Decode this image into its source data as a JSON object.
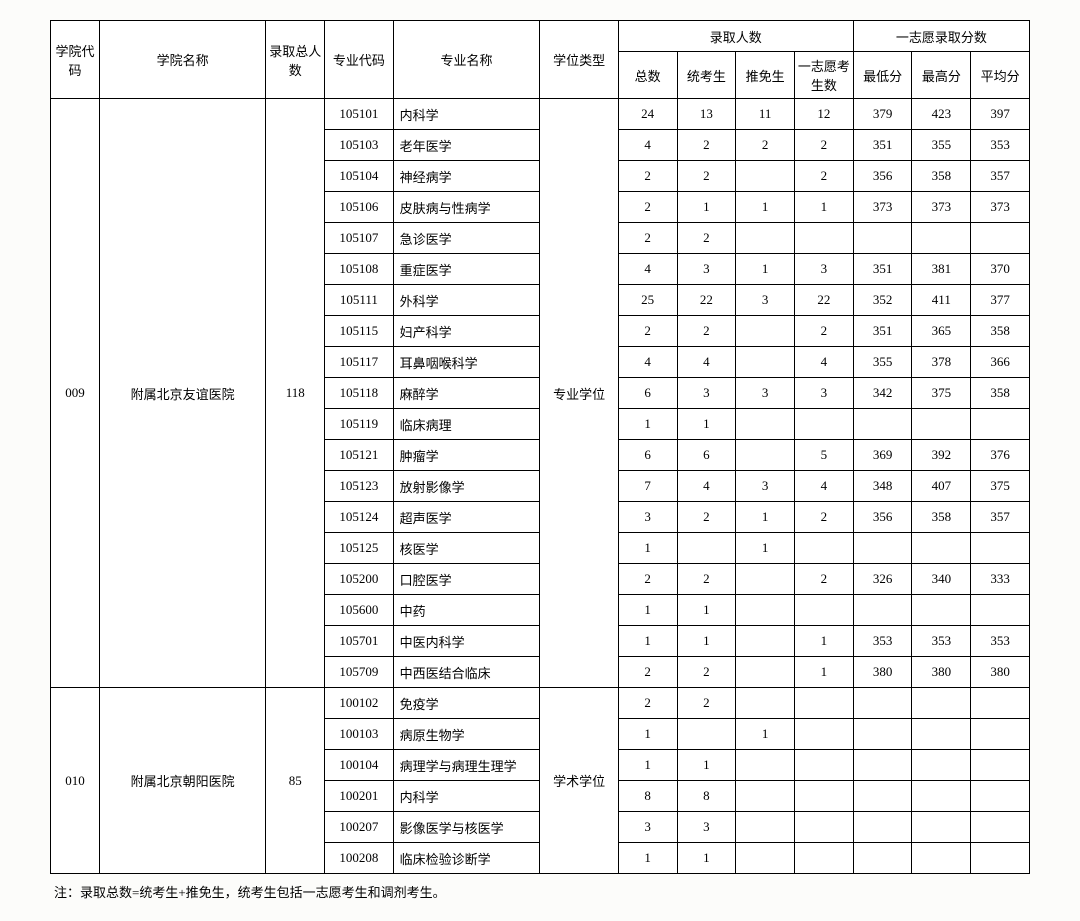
{
  "headers": {
    "college_code": "学院代码",
    "college_name": "学院名称",
    "total_admitted": "录取总人数",
    "major_code": "专业代码",
    "major_name": "专业名称",
    "degree_type": "学位类型",
    "admitted_count": "录取人数",
    "first_choice_score": "一志愿录取分数",
    "total": "总数",
    "exam": "统考生",
    "recommend": "推免生",
    "first_choice": "一志愿考生数",
    "min": "最低分",
    "max": "最高分",
    "avg": "平均分"
  },
  "groups": [
    {
      "college_code": "009",
      "college_name": "附属北京友谊医院",
      "total_admitted": "118",
      "degree_type": "专业学位",
      "rows": [
        {
          "major_code": "105101",
          "major_name": "内科学",
          "total": "24",
          "exam": "13",
          "recommend": "11",
          "first": "12",
          "min": "379",
          "max": "423",
          "avg": "397"
        },
        {
          "major_code": "105103",
          "major_name": "老年医学",
          "total": "4",
          "exam": "2",
          "recommend": "2",
          "first": "2",
          "min": "351",
          "max": "355",
          "avg": "353"
        },
        {
          "major_code": "105104",
          "major_name": "神经病学",
          "total": "2",
          "exam": "2",
          "recommend": "",
          "first": "2",
          "min": "356",
          "max": "358",
          "avg": "357"
        },
        {
          "major_code": "105106",
          "major_name": "皮肤病与性病学",
          "total": "2",
          "exam": "1",
          "recommend": "1",
          "first": "1",
          "min": "373",
          "max": "373",
          "avg": "373"
        },
        {
          "major_code": "105107",
          "major_name": "急诊医学",
          "total": "2",
          "exam": "2",
          "recommend": "",
          "first": "",
          "min": "",
          "max": "",
          "avg": ""
        },
        {
          "major_code": "105108",
          "major_name": "重症医学",
          "total": "4",
          "exam": "3",
          "recommend": "1",
          "first": "3",
          "min": "351",
          "max": "381",
          "avg": "370"
        },
        {
          "major_code": "105111",
          "major_name": "外科学",
          "total": "25",
          "exam": "22",
          "recommend": "3",
          "first": "22",
          "min": "352",
          "max": "411",
          "avg": "377"
        },
        {
          "major_code": "105115",
          "major_name": "妇产科学",
          "total": "2",
          "exam": "2",
          "recommend": "",
          "first": "2",
          "min": "351",
          "max": "365",
          "avg": "358"
        },
        {
          "major_code": "105117",
          "major_name": "耳鼻咽喉科学",
          "total": "4",
          "exam": "4",
          "recommend": "",
          "first": "4",
          "min": "355",
          "max": "378",
          "avg": "366"
        },
        {
          "major_code": "105118",
          "major_name": "麻醉学",
          "total": "6",
          "exam": "3",
          "recommend": "3",
          "first": "3",
          "min": "342",
          "max": "375",
          "avg": "358"
        },
        {
          "major_code": "105119",
          "major_name": "临床病理",
          "total": "1",
          "exam": "1",
          "recommend": "",
          "first": "",
          "min": "",
          "max": "",
          "avg": ""
        },
        {
          "major_code": "105121",
          "major_name": "肿瘤学",
          "total": "6",
          "exam": "6",
          "recommend": "",
          "first": "5",
          "min": "369",
          "max": "392",
          "avg": "376"
        },
        {
          "major_code": "105123",
          "major_name": "放射影像学",
          "total": "7",
          "exam": "4",
          "recommend": "3",
          "first": "4",
          "min": "348",
          "max": "407",
          "avg": "375"
        },
        {
          "major_code": "105124",
          "major_name": "超声医学",
          "total": "3",
          "exam": "2",
          "recommend": "1",
          "first": "2",
          "min": "356",
          "max": "358",
          "avg": "357"
        },
        {
          "major_code": "105125",
          "major_name": "核医学",
          "total": "1",
          "exam": "",
          "recommend": "1",
          "first": "",
          "min": "",
          "max": "",
          "avg": ""
        },
        {
          "major_code": "105200",
          "major_name": "口腔医学",
          "total": "2",
          "exam": "2",
          "recommend": "",
          "first": "2",
          "min": "326",
          "max": "340",
          "avg": "333"
        },
        {
          "major_code": "105600",
          "major_name": "中药",
          "total": "1",
          "exam": "1",
          "recommend": "",
          "first": "",
          "min": "",
          "max": "",
          "avg": ""
        },
        {
          "major_code": "105701",
          "major_name": "中医内科学",
          "total": "1",
          "exam": "1",
          "recommend": "",
          "first": "1",
          "min": "353",
          "max": "353",
          "avg": "353"
        },
        {
          "major_code": "105709",
          "major_name": "中西医结合临床",
          "total": "2",
          "exam": "2",
          "recommend": "",
          "first": "1",
          "min": "380",
          "max": "380",
          "avg": "380"
        }
      ]
    },
    {
      "college_code": "010",
      "college_name": "附属北京朝阳医院",
      "total_admitted": "85",
      "degree_type": "学术学位",
      "rows": [
        {
          "major_code": "100102",
          "major_name": "免疫学",
          "total": "2",
          "exam": "2",
          "recommend": "",
          "first": "",
          "min": "",
          "max": "",
          "avg": ""
        },
        {
          "major_code": "100103",
          "major_name": "病原生物学",
          "total": "1",
          "exam": "",
          "recommend": "1",
          "first": "",
          "min": "",
          "max": "",
          "avg": ""
        },
        {
          "major_code": "100104",
          "major_name": "病理学与病理生理学",
          "total": "1",
          "exam": "1",
          "recommend": "",
          "first": "",
          "min": "",
          "max": "",
          "avg": ""
        },
        {
          "major_code": "100201",
          "major_name": "内科学",
          "total": "8",
          "exam": "8",
          "recommend": "",
          "first": "",
          "min": "",
          "max": "",
          "avg": ""
        },
        {
          "major_code": "100207",
          "major_name": "影像医学与核医学",
          "total": "3",
          "exam": "3",
          "recommend": "",
          "first": "",
          "min": "",
          "max": "",
          "avg": ""
        },
        {
          "major_code": "100208",
          "major_name": "临床检验诊断学",
          "total": "1",
          "exam": "1",
          "recommend": "",
          "first": "",
          "min": "",
          "max": "",
          "avg": ""
        }
      ]
    }
  ],
  "note": "注：录取总数=统考生+推免生，统考生包括一志愿考生和调剂考生。"
}
